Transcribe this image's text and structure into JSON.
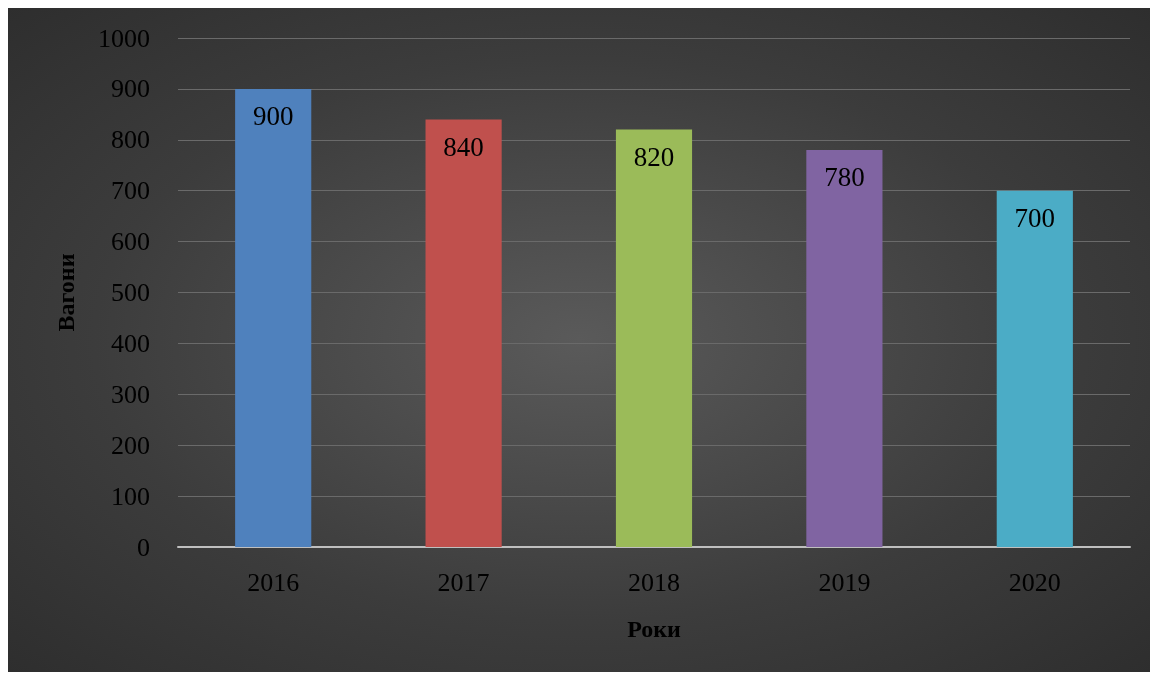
{
  "chart_data": {
    "type": "bar",
    "xlabel": "Роки",
    "ylabel": "Вагони",
    "categories": [
      "2016",
      "2017",
      "2018",
      "2019",
      "2020"
    ],
    "values": [
      900,
      840,
      820,
      780,
      700
    ],
    "colors": [
      "#4f81bd",
      "#c0504d",
      "#9bbb59",
      "#8064a2",
      "#4bacc6"
    ],
    "ylim": [
      0,
      1000
    ],
    "yticks": [
      0,
      100,
      200,
      300,
      400,
      500,
      600,
      700,
      800,
      900,
      1000
    ],
    "grid": "y",
    "data_labels": true
  }
}
